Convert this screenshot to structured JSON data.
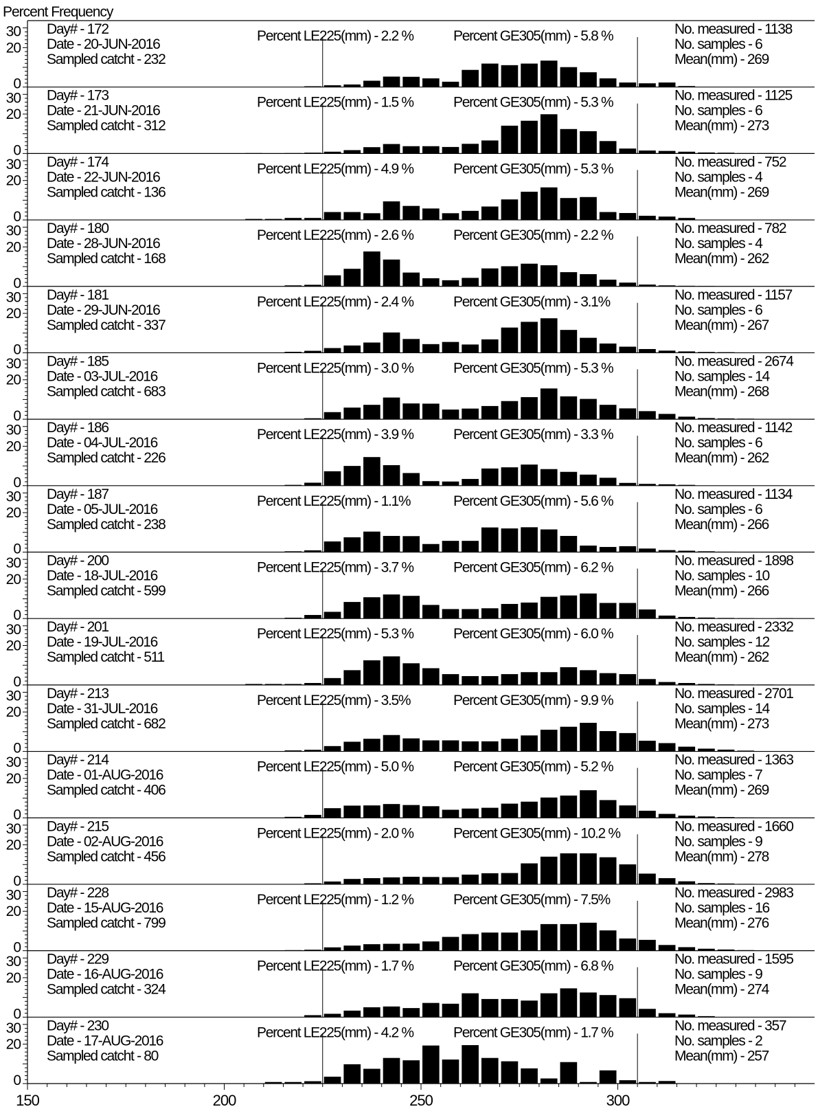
{
  "chart_data": {
    "type": "bar",
    "ylabel": "Percent Frequency",
    "xlim": [
      150,
      350
    ],
    "ylim": [
      0,
      33
    ],
    "x_ticks": [
      "150",
      "200",
      "250",
      "300"
    ],
    "y_ticks": [
      "0",
      "20",
      "30"
    ],
    "reference_lines_mm": [
      225,
      305
    ],
    "bin_width_mm": 5,
    "bin_starts_mm": [
      205,
      210,
      215,
      220,
      225,
      230,
      235,
      240,
      245,
      250,
      255,
      260,
      265,
      270,
      275,
      280,
      285,
      290,
      295,
      300,
      305,
      310,
      315,
      320,
      325,
      330,
      335,
      340,
      345
    ],
    "panels": [
      {
        "day": "Day# - 172",
        "date": "Date - 20-JUN-2016",
        "catch": "Sampled catcht - 232",
        "le": "Percent LE225(mm) - 2.2 %",
        "ge": "Percent GE305(mm) - 5.8 %",
        "measured": "No. measured - 1138",
        "samples": "No. samples - 6",
        "mean": "Mean(mm) - 269",
        "values": [
          0,
          0,
          0,
          0.4,
          0.9,
          1.3,
          3.2,
          5.3,
          5.2,
          4.4,
          2.7,
          8.7,
          11.9,
          11.1,
          11.9,
          13.4,
          10.1,
          7.5,
          4.4,
          2.3,
          1.9,
          2.3,
          0.5,
          0,
          0,
          0,
          0,
          0,
          0
        ]
      },
      {
        "day": "Day# - 173",
        "date": "Date - 21-JUN-2016",
        "catch": "Sampled catcht - 312",
        "le": "Percent LE225(mm) - 1.5 %",
        "ge": "Percent GE305(mm) - 5.3 %",
        "measured": "No. measured - 1125",
        "samples": "No. samples - 6",
        "mean": "Mean(mm) - 273",
        "values": [
          0.2,
          0,
          0.2,
          0.4,
          0.9,
          1.7,
          3.2,
          4.8,
          3.7,
          3.7,
          3.3,
          4.9,
          6.6,
          14.1,
          16.6,
          19.9,
          12.4,
          11.3,
          6.3,
          2.5,
          1.5,
          1.3,
          0.9,
          0.5,
          0.4,
          0.2,
          0.2,
          0,
          0
        ]
      },
      {
        "day": "Day# - 174",
        "date": "Date - 22-JUN-2016",
        "catch": "Sampled catcht - 136",
        "le": "Percent LE225(mm) - 4.9 %",
        "ge": "Percent GE305(mm) - 5.3 %",
        "measured": "No. measured - 752",
        "samples": "No. samples - 4",
        "mean": "Mean(mm) - 269",
        "values": [
          0.5,
          0.5,
          1,
          1,
          4,
          4,
          3.4,
          9.4,
          7.1,
          5.8,
          3.4,
          4.6,
          6.8,
          10.4,
          14.3,
          16.5,
          11.1,
          11.6,
          4,
          3.5,
          2.1,
          1.7,
          1,
          0,
          0,
          0,
          0,
          0,
          0
        ]
      },
      {
        "day": "Day# - 180",
        "date": "Date - 28-JUN-2016",
        "catch": "Sampled catcht - 168",
        "le": "Percent LE225(mm) - 2.6 %",
        "ge": "Percent GE305(mm) - 2.2 %",
        "measured": "No. measured - 782",
        "samples": "No. samples - 4",
        "mean": "Mean(mm) - 262",
        "values": [
          0,
          0,
          0.5,
          0.8,
          5.6,
          8.9,
          17.7,
          13.6,
          7,
          4.1,
          3.1,
          4.3,
          9.1,
          10.2,
          11.5,
          10.7,
          7.2,
          6.2,
          3.4,
          1.9,
          0.9,
          0.5,
          0.3,
          0.2,
          0,
          0,
          0,
          0,
          0
        ]
      },
      {
        "day": "Day# - 181",
        "date": "Date - 29-JUN-2016",
        "catch": "Sampled catcht - 337",
        "le": "Percent LE225(mm) - 2.4 %",
        "ge": "Percent GE305(mm) - 3.1%",
        "measured": "No. measured - 1157",
        "samples": "No. samples - 6",
        "mean": "Mean(mm) - 267",
        "values": [
          0,
          0,
          0.5,
          1,
          2.4,
          3.7,
          5.2,
          10.3,
          7,
          4.4,
          5.5,
          4.2,
          6.8,
          12.8,
          15.7,
          17.5,
          11.6,
          7.6,
          4.7,
          3.1,
          1.9,
          1.1,
          0.7,
          0.4,
          0.3,
          0,
          0,
          0,
          0
        ]
      },
      {
        "day": "Day# - 185",
        "date": "Date - 03-JUL-2016",
        "catch": "Sampled catcht - 683",
        "le": "Percent LE225(mm) - 3.0 %",
        "ge": "Percent GE305(mm) - 5.3 %",
        "measured": "No. measured - 2674",
        "samples": "No. samples - 14",
        "mean": "Mean(mm) - 268",
        "values": [
          0.2,
          0,
          0.2,
          0.5,
          3.6,
          5.9,
          7.3,
          11,
          8,
          7.9,
          4.9,
          5.4,
          6.7,
          9.2,
          11.2,
          15.6,
          11.6,
          10.3,
          7.3,
          5.5,
          4.1,
          2.7,
          1.3,
          0.6,
          0.4,
          0.3,
          0.2,
          0,
          0
        ]
      },
      {
        "day": "Day# - 186",
        "date": "Date - 04-JUL-2016",
        "catch": "Sampled catcht - 226",
        "le": "Percent LE225(mm) - 3.9 %",
        "ge": "Percent GE305(mm) - 3.3 %",
        "measured": "No. measured - 1142",
        "samples": "No. samples - 6",
        "mean": "Mean(mm) - 262",
        "values": [
          0,
          0,
          0.4,
          1.5,
          7.3,
          10,
          14.5,
          10.4,
          6.4,
          2.3,
          2.1,
          3.4,
          8.7,
          9.3,
          10.7,
          8.4,
          7,
          5.6,
          4,
          1.4,
          0.9,
          0.7,
          0.4,
          0,
          0,
          0,
          0,
          0,
          0
        ]
      },
      {
        "day": "Day# - 187",
        "date": "Date - 05-JUL-2016",
        "catch": "Sampled catcht - 238",
        "le": "Percent LE225(mm) - 1.1%",
        "ge": "Percent GE305(mm) - 5.6 %",
        "measured": "No. measured - 1134",
        "samples": "No. samples - 6",
        "mean": "Mean(mm) - 266",
        "values": [
          0,
          0,
          0.4,
          0.9,
          5.4,
          7.5,
          10.4,
          8.2,
          8.1,
          4.1,
          5.7,
          5.7,
          12.5,
          12,
          12.6,
          11.5,
          8.2,
          3.3,
          2.6,
          3,
          1.8,
          1,
          0.7,
          0.4,
          0.2,
          0,
          0,
          0,
          0
        ]
      },
      {
        "day": "Day# - 200",
        "date": "Date - 18-JUL-2016",
        "catch": "Sampled catcht - 599",
        "le": "Percent LE225(mm) - 3.7 %",
        "ge": "Percent GE305(mm) - 6.2 %",
        "measured": "No. measured - 1898",
        "samples": "No. samples - 10",
        "mean": "Mean(mm) - 266",
        "values": [
          0,
          0,
          0.4,
          1.8,
          3.4,
          8.4,
          10.8,
          12.2,
          11.5,
          6.9,
          4.8,
          4.8,
          5.2,
          7.4,
          8.1,
          11,
          11.7,
          12.7,
          7.9,
          7.9,
          4.6,
          1.5,
          0.8,
          0.5,
          0.3,
          0.2,
          0,
          0.2,
          0.1
        ]
      },
      {
        "day": "Day# - 201",
        "date": "Date - 19-JUL-2016",
        "catch": "Sampled catcht - 511",
        "le": "Percent LE225(mm) - 5.3 %",
        "ge": "Percent GE305(mm) - 6.0 %",
        "measured": "No. measured - 2332",
        "samples": "No. samples - 12",
        "mean": "Mean(mm) - 262",
        "values": [
          0.5,
          0.5,
          0.5,
          1,
          3.5,
          7.5,
          12.5,
          14.5,
          11,
          8.5,
          5.5,
          4.5,
          4.5,
          5.5,
          6.5,
          6.5,
          9,
          7.5,
          6,
          5.5,
          3,
          1.5,
          1,
          0.5,
          0.3,
          0.2,
          0.2,
          0,
          0
        ]
      },
      {
        "day": "Day# - 213",
        "date": "Date - 31-JUL-2016",
        "catch": "Sampled catcht - 682",
        "le": "Percent LE225(mm) - 3.5%",
        "ge": "Percent GE305(mm) - 9.9 %",
        "measured": "No. measured - 2701",
        "samples": "No. samples - 14",
        "mean": "Mean(mm) - 273",
        "values": [
          0,
          0,
          0.5,
          0.8,
          2.7,
          4.9,
          6.4,
          8.3,
          6.6,
          5.6,
          5.6,
          5.1,
          5.1,
          6.4,
          8.1,
          11,
          12.5,
          14.5,
          10.3,
          9.3,
          5.4,
          4.2,
          2.4,
          1.4,
          0.9,
          0.4,
          0,
          0.2,
          0
        ]
      },
      {
        "day": "Day# - 214",
        "date": "Date - 01-AUG-2016",
        "catch": "Sampled catcht - 406",
        "le": "Percent LE225(mm) - 5.0 %",
        "ge": "Percent GE305(mm) - 5.2 %",
        "measured": "No. measured - 1363",
        "samples": "No. samples - 7",
        "mean": "Mean(mm) - 269",
        "values": [
          0,
          0,
          0.5,
          1.5,
          4.9,
          6.2,
          6.3,
          7,
          6.5,
          5.9,
          4.1,
          4.7,
          5.1,
          7.2,
          8.2,
          10.3,
          11.3,
          14,
          9,
          6.3,
          3.6,
          2,
          1.1,
          0.7,
          0.4,
          0.2,
          0,
          0,
          0
        ]
      },
      {
        "day": "Day# - 215",
        "date": "Date - 02-AUG-2016",
        "catch": "Sampled catcht - 456",
        "le": "Percent LE225(mm) - 2.0 %",
        "ge": "Percent GE305(mm) - 10.2 %",
        "measured": "No. measured - 1660",
        "samples": "No. samples - 9",
        "mean": "Mean(mm) - 278",
        "values": [
          0,
          0,
          0,
          0.5,
          1.4,
          2.7,
          3.1,
          3.5,
          3.8,
          3.7,
          3.6,
          4.9,
          5.6,
          5.7,
          10.6,
          14,
          15.7,
          15.7,
          13.7,
          10.1,
          5.4,
          3.1,
          1.5,
          0.6,
          0.4,
          0.2,
          0,
          0,
          0
        ]
      },
      {
        "day": "Day# - 228",
        "date": "Date - 15-AUG-2016",
        "catch": "Sampled catcht - 799",
        "le": "Percent LE225(mm) - 1.2 %",
        "ge": "Percent GE305(mm) - 7.5%",
        "measured": "No. measured - 2983",
        "samples": "No. samples - 16",
        "mean": "Mean(mm) - 276",
        "values": [
          0,
          0,
          0.3,
          0.5,
          1.7,
          2.6,
          3.3,
          3.5,
          3.6,
          4.7,
          7,
          8.4,
          9.2,
          9.2,
          10.3,
          13.5,
          13.5,
          14.2,
          10.3,
          6.2,
          5.5,
          2.9,
          1.8,
          1,
          0.6,
          0.3,
          0,
          0,
          0
        ]
      },
      {
        "day": "Day# - 229",
        "date": "Date - 16-AUG-2016",
        "catch": "Sampled catcht - 324",
        "le": "Percent LE225(mm) - 1.7 %",
        "ge": "Percent GE305(mm) - 6.8 %",
        "measured": "No. measured - 1595",
        "samples": "No. samples - 9",
        "mean": "Mean(mm) - 274",
        "values": [
          0,
          0,
          0,
          1,
          1.7,
          3.3,
          5,
          5.4,
          4.6,
          7.2,
          6.8,
          12.1,
          9.2,
          9.2,
          8.4,
          12.1,
          14.6,
          12.5,
          11.2,
          9.6,
          4.2,
          2,
          1.3,
          0.5,
          0,
          0,
          0,
          0,
          0
        ]
      },
      {
        "day": "Day# - 230",
        "date": "Date - 17-AUG-2016",
        "catch": "Sampled catcht - 80",
        "le": "Percent LE225(mm) - 4.2 %",
        "ge": "Percent GE305(mm) - 1.7 %",
        "measured": "No. measured - 357",
        "samples": "No. samples - 2",
        "mean": "Mean(mm) - 257",
        "values": [
          0,
          0.8,
          0.8,
          1.2,
          3.5,
          9.8,
          7.5,
          13,
          11.8,
          19.3,
          12.2,
          19.5,
          13,
          11.3,
          7.7,
          2.6,
          10.9,
          0.8,
          6.7,
          1.7,
          0.8,
          1.3,
          0,
          0,
          0,
          0,
          0,
          0,
          0
        ]
      }
    ]
  }
}
